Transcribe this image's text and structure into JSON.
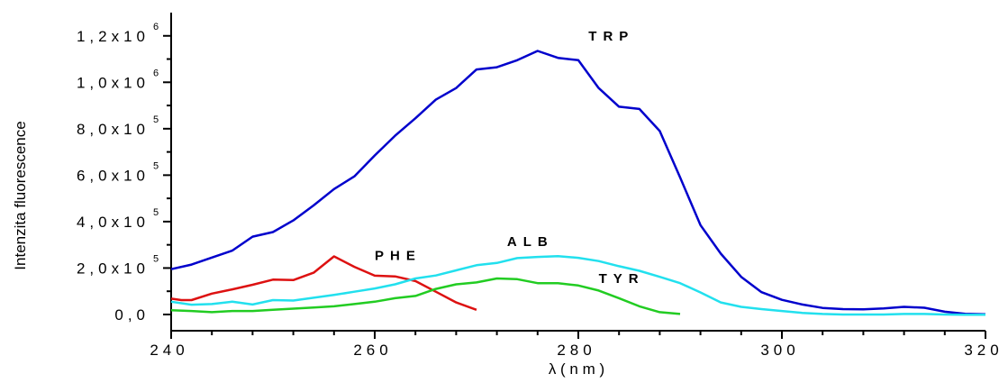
{
  "chart_data": {
    "type": "line",
    "xlabel": "λ (nm)",
    "ylabel": "Intenzita fluorescence",
    "xlim": [
      240,
      320
    ],
    "ylim": [
      -70000,
      1300000
    ],
    "x_ticks": [
      {
        "value": 240,
        "label": "240"
      },
      {
        "value": 260,
        "label": "260"
      },
      {
        "value": 280,
        "label": "280"
      },
      {
        "value": 300,
        "label": "300"
      },
      {
        "value": 320,
        "label": "320"
      }
    ],
    "y_ticks": [
      {
        "value": 0,
        "label": "0,0",
        "exp": ""
      },
      {
        "value": 200000,
        "label": "2,0x10",
        "exp": "5"
      },
      {
        "value": 400000,
        "label": "4,0x10",
        "exp": "5"
      },
      {
        "value": 600000,
        "label": "6,0x10",
        "exp": "5"
      },
      {
        "value": 800000,
        "label": "8,0x10",
        "exp": "5"
      },
      {
        "value": 1000000,
        "label": "1,0x10",
        "exp": "6"
      },
      {
        "value": 1200000,
        "label": "1,2x10",
        "exp": "6"
      }
    ],
    "series": [
      {
        "name": "TRP",
        "color": "#0000cc",
        "label_at": [
          281,
          1180000
        ],
        "x": [
          240,
          242,
          244,
          246,
          248,
          250,
          252,
          254,
          256,
          258,
          260,
          262,
          264,
          266,
          268,
          270,
          272,
          274,
          276,
          278,
          280,
          282,
          284,
          286,
          288,
          290,
          292,
          294,
          296,
          298,
          300,
          302,
          304,
          306,
          308,
          310,
          312,
          314,
          316,
          318,
          320
        ],
        "y": [
          195000,
          215000,
          245000,
          275000,
          335000,
          355000,
          405000,
          470000,
          540000,
          595000,
          685000,
          770000,
          845000,
          925000,
          975000,
          1055000,
          1065000,
          1095000,
          1135000,
          1105000,
          1095000,
          975000,
          895000,
          885000,
          790000,
          590000,
          385000,
          262000,
          162000,
          96000,
          63000,
          43000,
          28000,
          23000,
          22000,
          26000,
          33000,
          29000,
          12000,
          3000,
          1000
        ]
      },
      {
        "name": "PHE",
        "color": "#dd1111",
        "label_at": [
          260,
          235000
        ],
        "x": [
          240,
          241,
          242,
          244,
          246,
          248,
          250,
          252,
          254,
          256,
          258,
          260,
          262,
          264,
          266,
          268,
          270
        ],
        "y": [
          68000,
          62000,
          62000,
          90000,
          108000,
          128000,
          150000,
          148000,
          180000,
          250000,
          205000,
          167000,
          164000,
          144000,
          98000,
          52000,
          20000
        ]
      },
      {
        "name": "ALB",
        "color": "#22e0ee",
        "label_at": [
          273,
          295000
        ],
        "x": [
          240,
          242,
          244,
          246,
          248,
          250,
          252,
          254,
          256,
          258,
          260,
          262,
          264,
          266,
          268,
          270,
          272,
          274,
          276,
          278,
          280,
          282,
          284,
          286,
          288,
          290,
          292,
          294,
          296,
          298,
          300,
          302,
          304,
          306,
          308,
          310,
          312,
          314,
          316,
          318,
          320
        ],
        "y": [
          55000,
          42000,
          45000,
          55000,
          43000,
          62000,
          60000,
          72000,
          84000,
          98000,
          112000,
          130000,
          155000,
          168000,
          190000,
          212000,
          222000,
          243000,
          248000,
          251000,
          244000,
          230000,
          208000,
          188000,
          162000,
          135000,
          95000,
          52000,
          33000,
          23000,
          15000,
          7000,
          2000,
          0,
          0,
          0,
          2000,
          2000,
          0,
          -1000,
          -1000
        ]
      },
      {
        "name": "TYR",
        "color": "#22cc22",
        "label_at": [
          282,
          135000
        ],
        "x": [
          240,
          242,
          244,
          246,
          248,
          250,
          252,
          254,
          256,
          258,
          260,
          262,
          264,
          266,
          268,
          270,
          272,
          274,
          276,
          278,
          280,
          282,
          284,
          286,
          288,
          290
        ],
        "y": [
          18000,
          15000,
          10000,
          15000,
          15000,
          20000,
          25000,
          30000,
          35000,
          45000,
          55000,
          70000,
          80000,
          110000,
          130000,
          138000,
          155000,
          152000,
          135000,
          135000,
          125000,
          103000,
          70000,
          35000,
          10000,
          2000
        ]
      }
    ]
  }
}
